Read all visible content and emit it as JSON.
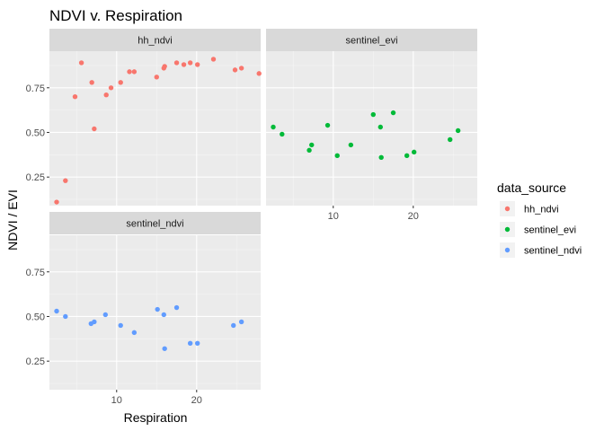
{
  "chart_data": {
    "type": "scatter",
    "title": "NDVI v. Respiration",
    "xlabel": "Respiration",
    "ylabel": "NDVI / EVI",
    "xlim": [
      1.6,
      28.0
    ],
    "ylim": [
      0.09,
      0.955
    ],
    "x_ticks": [
      10,
      20
    ],
    "y_ticks": [
      0.25,
      0.5,
      0.75
    ],
    "y_tick_labels": [
      "0.25",
      "0.50",
      "0.75"
    ],
    "grid": true,
    "legend": {
      "title": "data_source",
      "position": "right"
    },
    "series": [
      {
        "name": "hh_ndvi",
        "color": "#F8766D",
        "points": [
          [
            2.5,
            0.11
          ],
          [
            3.6,
            0.23
          ],
          [
            4.8,
            0.7
          ],
          [
            5.6,
            0.89
          ],
          [
            6.9,
            0.78
          ],
          [
            7.2,
            0.52
          ],
          [
            8.7,
            0.71
          ],
          [
            9.3,
            0.75
          ],
          [
            10.5,
            0.78
          ],
          [
            11.6,
            0.84
          ],
          [
            12.2,
            0.84
          ],
          [
            15.0,
            0.81
          ],
          [
            15.9,
            0.86
          ],
          [
            16.0,
            0.87
          ],
          [
            17.5,
            0.89
          ],
          [
            18.4,
            0.88
          ],
          [
            19.2,
            0.89
          ],
          [
            20.1,
            0.88
          ],
          [
            22.1,
            0.91
          ],
          [
            24.8,
            0.85
          ],
          [
            25.6,
            0.86
          ],
          [
            27.8,
            0.83
          ]
        ]
      },
      {
        "name": "sentinel_evi",
        "color": "#00BA38",
        "points": [
          [
            2.5,
            0.53
          ],
          [
            3.6,
            0.49
          ],
          [
            7.0,
            0.4
          ],
          [
            7.3,
            0.43
          ],
          [
            9.3,
            0.54
          ],
          [
            10.5,
            0.37
          ],
          [
            12.2,
            0.43
          ],
          [
            15.0,
            0.6
          ],
          [
            15.9,
            0.53
          ],
          [
            16.0,
            0.36
          ],
          [
            17.5,
            0.61
          ],
          [
            19.2,
            0.37
          ],
          [
            20.1,
            0.39
          ],
          [
            24.6,
            0.46
          ],
          [
            25.6,
            0.51
          ]
        ]
      },
      {
        "name": "sentinel_ndvi",
        "color": "#619CFF",
        "points": [
          [
            2.5,
            0.53
          ],
          [
            3.6,
            0.5
          ],
          [
            6.8,
            0.46
          ],
          [
            7.2,
            0.47
          ],
          [
            8.6,
            0.51
          ],
          [
            10.5,
            0.45
          ],
          [
            12.2,
            0.41
          ],
          [
            15.1,
            0.54
          ],
          [
            15.9,
            0.51
          ],
          [
            16.0,
            0.32
          ],
          [
            17.5,
            0.55
          ],
          [
            19.2,
            0.35
          ],
          [
            20.1,
            0.35
          ],
          [
            24.6,
            0.45
          ],
          [
            25.6,
            0.47
          ]
        ]
      }
    ],
    "panels": [
      {
        "label": "hh_ndvi",
        "series": "hh_ndvi",
        "show_y_axis": true,
        "show_x_axis": false
      },
      {
        "label": "sentinel_evi",
        "series": "sentinel_evi",
        "show_y_axis": false,
        "show_x_axis": true
      },
      {
        "label": "sentinel_ndvi",
        "series": "sentinel_ndvi",
        "show_y_axis": true,
        "show_x_axis": true
      }
    ]
  }
}
